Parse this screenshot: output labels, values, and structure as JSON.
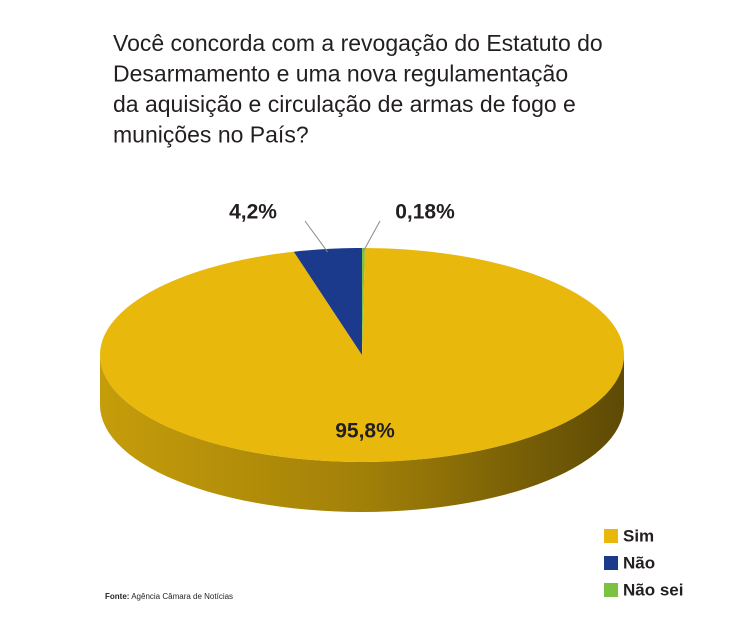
{
  "chart_data": {
    "type": "pie",
    "title_lines": [
      "Você concorda com a revogação do Estatuto do",
      "Desarmamento  e  uma nova regulamentação",
      "da aquisição e circulação de armas de fogo e",
      "munições no País?"
    ],
    "categories": [
      "Não sei",
      "Sim",
      "Não"
    ],
    "values": [
      0.18,
      95.8,
      4.2
    ],
    "value_labels": [
      "0,18%",
      "95,8%",
      "4,2%"
    ],
    "colors": [
      "#7dc142",
      "#e8b80c",
      "#1c3a8c"
    ],
    "legend_order": [
      1,
      2,
      0
    ],
    "source": {
      "label": "Fonte:",
      "text": "Agência Câmara de Notícias"
    }
  }
}
